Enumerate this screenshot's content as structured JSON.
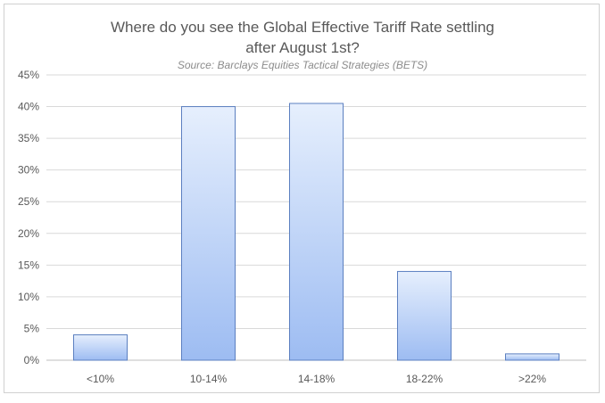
{
  "chart_data": {
    "type": "bar",
    "title": "Where do you see the Global Effective Tariff Rate settling after August 1st?",
    "title_lines": [
      "Where do you see the Global Effective Tariff Rate settling",
      "after August 1st?"
    ],
    "subtitle": "Source: Barclays Equities Tactical Strategies (BETS)",
    "categories": [
      "<10%",
      "10-14%",
      "14-18%",
      "18-22%",
      ">22%"
    ],
    "values": [
      4,
      40,
      40.5,
      14,
      1
    ],
    "xlabel": "",
    "ylabel": "",
    "ylim": [
      0,
      45
    ],
    "yticks": [
      "0%",
      "5%",
      "10%",
      "15%",
      "20%",
      "25%",
      "30%",
      "35%",
      "40%",
      "45%"
    ],
    "grid": true,
    "legend": "none",
    "colors": {
      "bar_top": "#e6effd",
      "bar_bottom": "#9dbcf2",
      "bar_stroke": "#5b7fc0",
      "grid": "#d9d9d9",
      "axis": "#bfbfbf"
    }
  }
}
